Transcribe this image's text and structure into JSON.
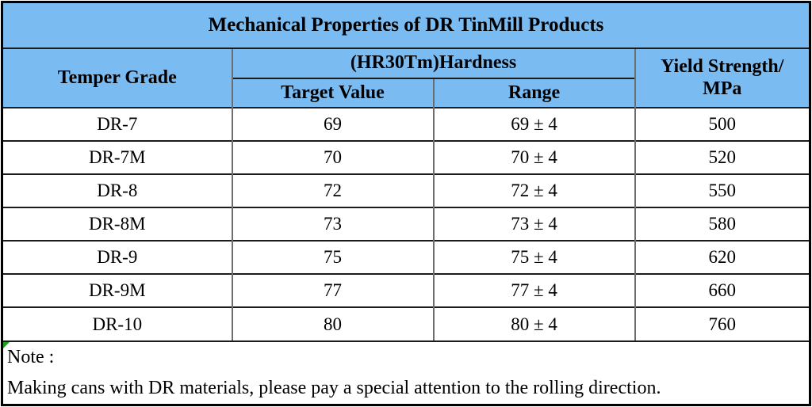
{
  "title": "Mechanical Properties of DR TinMill Products",
  "table": {
    "headers": {
      "temper_grade": "Temper Grade",
      "hardness_group": "(HR30Tm)Hardness",
      "target_value": "Target Value",
      "range": "Range",
      "yield_strength_line1": "Yield Strength/",
      "yield_strength_line2": "MPa"
    },
    "rows": [
      {
        "grade": "DR-7",
        "target": "69",
        "range": "69 ± 4",
        "yield": "500"
      },
      {
        "grade": "DR-7M",
        "target": "70",
        "range": "70 ± 4",
        "yield": "520"
      },
      {
        "grade": "DR-8",
        "target": "72",
        "range": "72 ± 4",
        "yield": "550"
      },
      {
        "grade": "DR-8M",
        "target": "73",
        "range": "73 ± 4",
        "yield": "580"
      },
      {
        "grade": "DR-9",
        "target": "75",
        "range": "75 ± 4",
        "yield": "620"
      },
      {
        "grade": "DR-9M",
        "target": "77",
        "range": "77 ± 4",
        "yield": "660"
      },
      {
        "grade": "DR-10",
        "target": "80",
        "range": "80 ± 4",
        "yield": "760"
      }
    ]
  },
  "note": {
    "label": "Note :",
    "text": "Making cans with DR materials, please pay a special attention to the rolling direction."
  },
  "colors": {
    "header_bg": "#7abcf2",
    "border_outer": "#000000",
    "grid_horizontal": "#1b1b1b",
    "grid_vertical": "#6e6e6e",
    "text": "#000000",
    "note_flag_green": "#1f9e1f"
  }
}
